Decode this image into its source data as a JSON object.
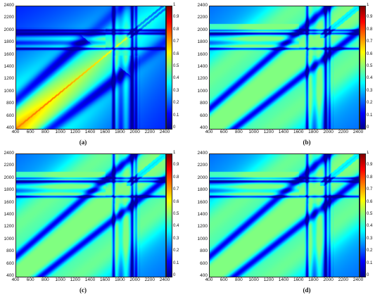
{
  "colorbar_gradient": [
    "#00008f",
    "#0000ff",
    "#0080ff",
    "#00ffff",
    "#80ff80",
    "#ffff00",
    "#ff8000",
    "#ff0000",
    "#800000"
  ],
  "chart_data": [
    {
      "type": "heatmap",
      "caption": "(a)",
      "x_ticks": [
        "400",
        "600",
        "800",
        "1000",
        "1200",
        "1400",
        "1600",
        "1800",
        "2000",
        "2200",
        "2400"
      ],
      "y_ticks": [
        "2400",
        "2200",
        "2000",
        "1800",
        "1600",
        "1400",
        "1200",
        "1000",
        "800",
        "600",
        "400"
      ],
      "xlim": [
        400,
        2400
      ],
      "ylim": [
        400,
        2400
      ],
      "colorbar": {
        "range": [
          0,
          1
        ],
        "ticks": [
          "1",
          "0.9",
          "0.8",
          "0.7",
          "0.6",
          "0.5",
          "0.4",
          "0.3",
          "0.2",
          "0.1",
          "0"
        ]
      },
      "max_level": 0.75
    },
    {
      "type": "heatmap",
      "caption": "(b)",
      "x_ticks": [
        "400",
        "600",
        "800",
        "1000",
        "1200",
        "1400",
        "1600",
        "1800",
        "2000",
        "2200",
        "2400"
      ],
      "y_ticks": [
        "2400",
        "2200",
        "2000",
        "1800",
        "1600",
        "1400",
        "1200",
        "1000",
        "800",
        "600",
        "400"
      ],
      "xlim": [
        400,
        2400
      ],
      "ylim": [
        400,
        2400
      ],
      "colorbar": {
        "range": [
          0,
          1
        ],
        "ticks": [
          "1",
          "0.9",
          "0.8",
          "0.7",
          "0.6",
          "0.5",
          "0.4",
          "0.3",
          "0.2",
          "0.1",
          "0"
        ]
      },
      "max_level": 0.5
    },
    {
      "type": "heatmap",
      "caption": "(c)",
      "x_ticks": [
        "400",
        "600",
        "800",
        "1000",
        "1200",
        "1400",
        "1600",
        "1800",
        "2000",
        "2200",
        "2400"
      ],
      "y_ticks": [
        "2400",
        "2200",
        "2000",
        "1800",
        "1600",
        "1400",
        "1200",
        "1000",
        "800",
        "600",
        "400"
      ],
      "xlim": [
        400,
        2400
      ],
      "ylim": [
        400,
        2400
      ],
      "colorbar": {
        "range": [
          0,
          1
        ],
        "ticks": [
          "1",
          "0.9",
          "0.8",
          "0.7",
          "0.6",
          "0.5",
          "0.4",
          "0.3",
          "0.2",
          "0.1",
          "0"
        ]
      },
      "max_level": 0.5
    },
    {
      "type": "heatmap",
      "caption": "(d)",
      "x_ticks": [
        "400",
        "600",
        "800",
        "1000",
        "1200",
        "1400",
        "1600",
        "1800",
        "2000",
        "2200",
        "2400"
      ],
      "y_ticks": [
        "2400",
        "2200",
        "2000",
        "1800",
        "1600",
        "1400",
        "1200",
        "1000",
        "800",
        "600",
        "400"
      ],
      "xlim": [
        400,
        2400
      ],
      "ylim": [
        400,
        2400
      ],
      "colorbar": {
        "range": [
          0,
          1
        ],
        "ticks": [
          "1",
          "0.9",
          "0.8",
          "0.7",
          "0.6",
          "0.5",
          "0.4",
          "0.3",
          "0.2",
          "0.1",
          "0"
        ]
      },
      "max_level": 0.5
    }
  ]
}
